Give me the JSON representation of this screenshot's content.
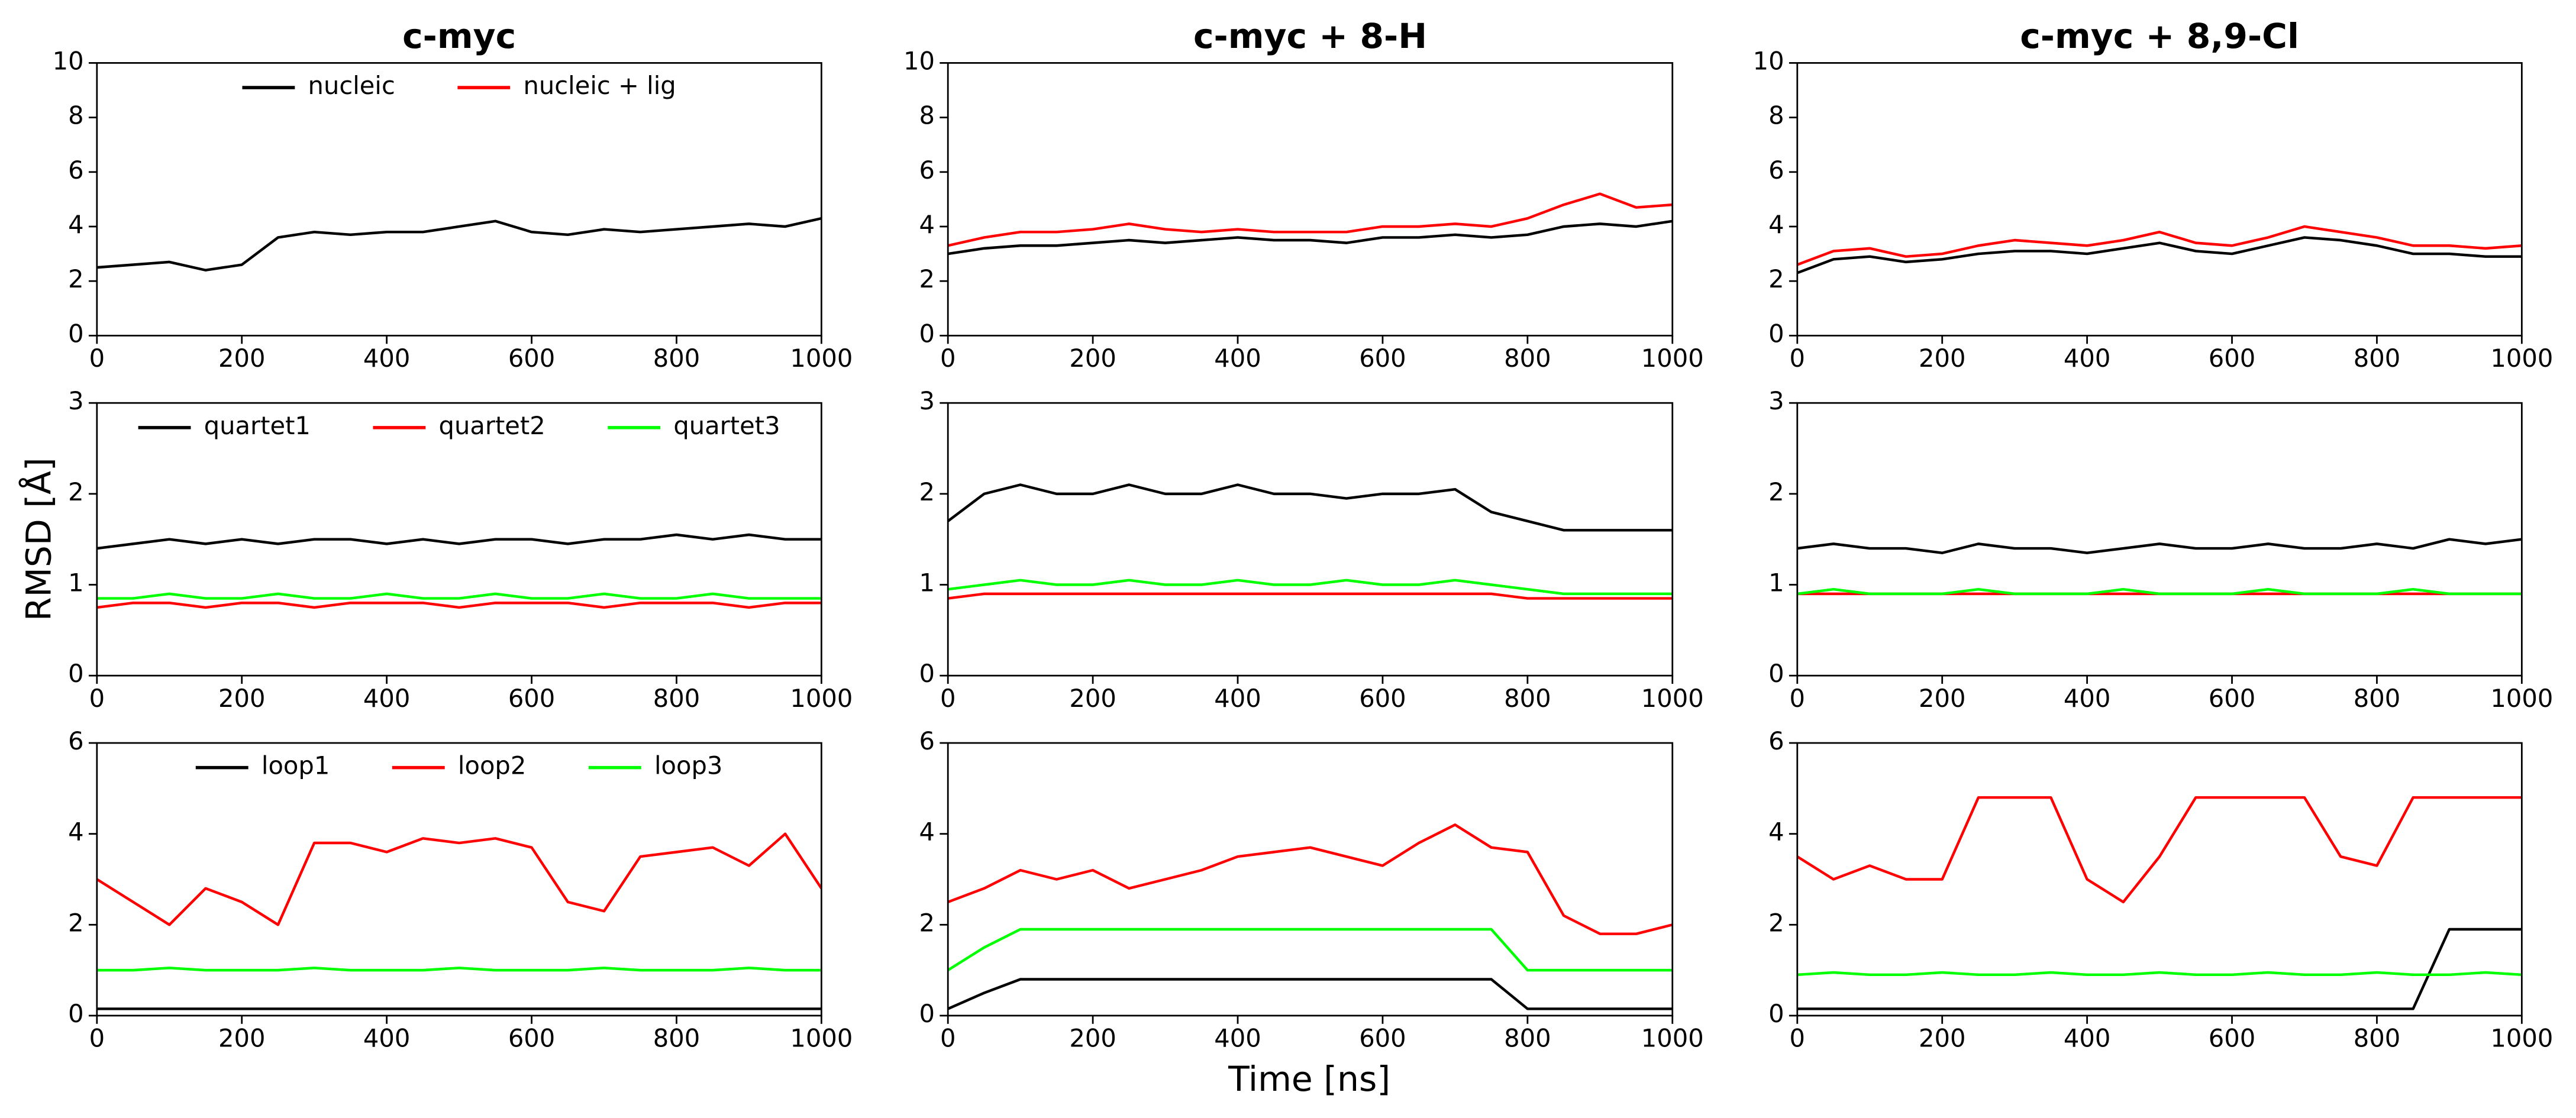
{
  "xlabel": "Time [ns]",
  "ylabel": "RMSD [Å]",
  "chart_data": [
    {
      "type": "line",
      "title": "c-myc",
      "legend": "upper center",
      "x": [
        0,
        50,
        100,
        150,
        200,
        250,
        300,
        350,
        400,
        450,
        500,
        550,
        600,
        650,
        700,
        750,
        800,
        850,
        900,
        950,
        1000
      ],
      "xlim": [
        0,
        1000
      ],
      "xticks": [
        0,
        200,
        400,
        600,
        800,
        1000
      ],
      "ylim": [
        0,
        10
      ],
      "yticks": [
        0,
        2,
        4,
        6,
        8,
        10
      ],
      "series": [
        {
          "name": "nucleic",
          "color": "#000000",
          "values": [
            2.5,
            2.6,
            2.7,
            2.4,
            2.6,
            3.6,
            3.8,
            3.7,
            3.8,
            3.8,
            4.0,
            4.2,
            3.8,
            3.7,
            3.9,
            3.8,
            3.9,
            4.0,
            4.1,
            4.0,
            4.3
          ]
        },
        {
          "name": "nucleic + lig",
          "color": "#ff0000",
          "values": [
            null,
            null,
            null,
            null,
            null,
            null,
            null,
            null,
            null,
            null,
            null,
            null,
            null,
            null,
            null,
            null,
            null,
            null,
            null,
            null,
            null
          ]
        }
      ]
    },
    {
      "type": "line",
      "title": "c-myc + 8-H",
      "x": [
        0,
        50,
        100,
        150,
        200,
        250,
        300,
        350,
        400,
        450,
        500,
        550,
        600,
        650,
        700,
        750,
        800,
        850,
        900,
        950,
        1000
      ],
      "xlim": [
        0,
        1000
      ],
      "xticks": [
        0,
        200,
        400,
        600,
        800,
        1000
      ],
      "ylim": [
        0,
        10
      ],
      "yticks": [
        0,
        2,
        4,
        6,
        8,
        10
      ],
      "series": [
        {
          "color": "#000000",
          "values": [
            3.0,
            3.2,
            3.3,
            3.3,
            3.4,
            3.5,
            3.4,
            3.5,
            3.6,
            3.5,
            3.5,
            3.4,
            3.6,
            3.6,
            3.7,
            3.6,
            3.7,
            4.0,
            4.1,
            4.0,
            4.2
          ]
        },
        {
          "color": "#ff0000",
          "values": [
            3.3,
            3.6,
            3.8,
            3.8,
            3.9,
            4.1,
            3.9,
            3.8,
            3.9,
            3.8,
            3.8,
            3.8,
            4.0,
            4.0,
            4.1,
            4.0,
            4.3,
            4.8,
            5.2,
            4.7,
            4.8
          ]
        }
      ]
    },
    {
      "type": "line",
      "title": "c-myc + 8,9-Cl",
      "x": [
        0,
        50,
        100,
        150,
        200,
        250,
        300,
        350,
        400,
        450,
        500,
        550,
        600,
        650,
        700,
        750,
        800,
        850,
        900,
        950,
        1000
      ],
      "xlim": [
        0,
        1000
      ],
      "xticks": [
        0,
        200,
        400,
        600,
        800,
        1000
      ],
      "ylim": [
        0,
        10
      ],
      "yticks": [
        0,
        2,
        4,
        6,
        8,
        10
      ],
      "series": [
        {
          "color": "#000000",
          "values": [
            2.3,
            2.8,
            2.9,
            2.7,
            2.8,
            3.0,
            3.1,
            3.1,
            3.0,
            3.2,
            3.4,
            3.1,
            3.0,
            3.3,
            3.6,
            3.5,
            3.3,
            3.0,
            3.0,
            2.9,
            2.9
          ]
        },
        {
          "color": "#ff0000",
          "values": [
            2.6,
            3.1,
            3.2,
            2.9,
            3.0,
            3.3,
            3.5,
            3.4,
            3.3,
            3.5,
            3.8,
            3.4,
            3.3,
            3.6,
            4.0,
            3.8,
            3.6,
            3.3,
            3.3,
            3.2,
            3.3
          ]
        }
      ]
    },
    {
      "type": "line",
      "legend": "upper center",
      "x": [
        0,
        50,
        100,
        150,
        200,
        250,
        300,
        350,
        400,
        450,
        500,
        550,
        600,
        650,
        700,
        750,
        800,
        850,
        900,
        950,
        1000
      ],
      "xlim": [
        0,
        1000
      ],
      "xticks": [
        0,
        200,
        400,
        600,
        800,
        1000
      ],
      "ylim": [
        0,
        3
      ],
      "yticks": [
        0,
        1,
        2,
        3
      ],
      "series": [
        {
          "name": "quartet1",
          "color": "#000000",
          "values": [
            1.4,
            1.45,
            1.5,
            1.45,
            1.5,
            1.45,
            1.5,
            1.5,
            1.45,
            1.5,
            1.45,
            1.5,
            1.5,
            1.45,
            1.5,
            1.5,
            1.55,
            1.5,
            1.55,
            1.5,
            1.5
          ]
        },
        {
          "name": "quartet2",
          "color": "#ff0000",
          "values": [
            0.75,
            0.8,
            0.8,
            0.75,
            0.8,
            0.8,
            0.75,
            0.8,
            0.8,
            0.8,
            0.75,
            0.8,
            0.8,
            0.8,
            0.75,
            0.8,
            0.8,
            0.8,
            0.75,
            0.8,
            0.8
          ]
        },
        {
          "name": "quartet3",
          "color": "#00ff00",
          "values": [
            0.85,
            0.85,
            0.9,
            0.85,
            0.85,
            0.9,
            0.85,
            0.85,
            0.9,
            0.85,
            0.85,
            0.9,
            0.85,
            0.85,
            0.9,
            0.85,
            0.85,
            0.9,
            0.85,
            0.85,
            0.85
          ]
        }
      ]
    },
    {
      "type": "line",
      "x": [
        0,
        50,
        100,
        150,
        200,
        250,
        300,
        350,
        400,
        450,
        500,
        550,
        600,
        650,
        700,
        750,
        800,
        850,
        900,
        950,
        1000
      ],
      "xlim": [
        0,
        1000
      ],
      "xticks": [
        0,
        200,
        400,
        600,
        800,
        1000
      ],
      "ylim": [
        0,
        3
      ],
      "yticks": [
        0,
        1,
        2,
        3
      ],
      "series": [
        {
          "color": "#000000",
          "values": [
            1.7,
            2.0,
            2.1,
            2.0,
            2.0,
            2.1,
            2.0,
            2.0,
            2.1,
            2.0,
            2.0,
            1.95,
            2.0,
            2.0,
            2.05,
            1.8,
            1.7,
            1.6,
            1.6,
            1.6,
            1.6
          ]
        },
        {
          "color": "#ff0000",
          "values": [
            0.85,
            0.9,
            0.9,
            0.9,
            0.9,
            0.9,
            0.9,
            0.9,
            0.9,
            0.9,
            0.9,
            0.9,
            0.9,
            0.9,
            0.9,
            0.9,
            0.85,
            0.85,
            0.85,
            0.85,
            0.85
          ]
        },
        {
          "color": "#00ff00",
          "values": [
            0.95,
            1.0,
            1.05,
            1.0,
            1.0,
            1.05,
            1.0,
            1.0,
            1.05,
            1.0,
            1.0,
            1.05,
            1.0,
            1.0,
            1.05,
            1.0,
            0.95,
            0.9,
            0.9,
            0.9,
            0.9
          ]
        }
      ]
    },
    {
      "type": "line",
      "x": [
        0,
        50,
        100,
        150,
        200,
        250,
        300,
        350,
        400,
        450,
        500,
        550,
        600,
        650,
        700,
        750,
        800,
        850,
        900,
        950,
        1000
      ],
      "xlim": [
        0,
        1000
      ],
      "xticks": [
        0,
        200,
        400,
        600,
        800,
        1000
      ],
      "ylim": [
        0,
        3
      ],
      "yticks": [
        0,
        1,
        2,
        3
      ],
      "series": [
        {
          "color": "#000000",
          "values": [
            1.4,
            1.45,
            1.4,
            1.4,
            1.35,
            1.45,
            1.4,
            1.4,
            1.35,
            1.4,
            1.45,
            1.4,
            1.4,
            1.45,
            1.4,
            1.4,
            1.45,
            1.4,
            1.5,
            1.45,
            1.5
          ]
        },
        {
          "color": "#ff0000",
          "values": [
            0.9,
            0.9,
            0.9,
            0.9,
            0.9,
            0.9,
            0.9,
            0.9,
            0.9,
            0.9,
            0.9,
            0.9,
            0.9,
            0.9,
            0.9,
            0.9,
            0.9,
            0.9,
            0.9,
            0.9,
            0.9
          ]
        },
        {
          "color": "#00ff00",
          "values": [
            0.9,
            0.95,
            0.9,
            0.9,
            0.9,
            0.95,
            0.9,
            0.9,
            0.9,
            0.95,
            0.9,
            0.9,
            0.9,
            0.95,
            0.9,
            0.9,
            0.9,
            0.95,
            0.9,
            0.9,
            0.9
          ]
        }
      ]
    },
    {
      "type": "line",
      "legend": "upper center",
      "x": [
        0,
        50,
        100,
        150,
        200,
        250,
        300,
        350,
        400,
        450,
        500,
        550,
        600,
        650,
        700,
        750,
        800,
        850,
        900,
        950,
        1000
      ],
      "xlim": [
        0,
        1000
      ],
      "xticks": [
        0,
        200,
        400,
        600,
        800,
        1000
      ],
      "ylim": [
        0,
        6
      ],
      "yticks": [
        0,
        2,
        4,
        6
      ],
      "series": [
        {
          "name": "loop1",
          "color": "#000000",
          "values": [
            0.15,
            0.15,
            0.15,
            0.15,
            0.15,
            0.15,
            0.15,
            0.15,
            0.15,
            0.15,
            0.15,
            0.15,
            0.15,
            0.15,
            0.15,
            0.15,
            0.15,
            0.15,
            0.15,
            0.15,
            0.15
          ]
        },
        {
          "name": "loop2",
          "color": "#ff0000",
          "values": [
            3.0,
            2.5,
            2.0,
            2.8,
            2.5,
            2.0,
            3.8,
            3.8,
            3.6,
            3.9,
            3.8,
            3.9,
            3.7,
            2.5,
            2.3,
            3.5,
            3.6,
            3.7,
            3.3,
            4.0,
            2.8
          ]
        },
        {
          "name": "loop3",
          "color": "#00ff00",
          "values": [
            1.0,
            1.0,
            1.05,
            1.0,
            1.0,
            1.0,
            1.05,
            1.0,
            1.0,
            1.0,
            1.05,
            1.0,
            1.0,
            1.0,
            1.05,
            1.0,
            1.0,
            1.0,
            1.05,
            1.0,
            1.0
          ]
        }
      ]
    },
    {
      "type": "line",
      "x": [
        0,
        50,
        100,
        150,
        200,
        250,
        300,
        350,
        400,
        450,
        500,
        550,
        600,
        650,
        700,
        750,
        800,
        850,
        900,
        950,
        1000
      ],
      "xlim": [
        0,
        1000
      ],
      "xticks": [
        0,
        200,
        400,
        600,
        800,
        1000
      ],
      "ylim": [
        0,
        6
      ],
      "yticks": [
        0,
        2,
        4,
        6
      ],
      "series": [
        {
          "color": "#000000",
          "values": [
            0.15,
            0.5,
            0.8,
            0.8,
            0.8,
            0.8,
            0.8,
            0.8,
            0.8,
            0.8,
            0.8,
            0.8,
            0.8,
            0.8,
            0.8,
            0.8,
            0.15,
            0.15,
            0.15,
            0.15,
            0.15
          ]
        },
        {
          "color": "#ff0000",
          "values": [
            2.5,
            2.8,
            3.2,
            3.0,
            3.2,
            2.8,
            3.0,
            3.2,
            3.5,
            3.6,
            3.7,
            3.5,
            3.3,
            3.8,
            4.2,
            3.7,
            3.6,
            2.2,
            1.8,
            1.8,
            2.0
          ]
        },
        {
          "color": "#00ff00",
          "values": [
            1.0,
            1.5,
            1.9,
            1.9,
            1.9,
            1.9,
            1.9,
            1.9,
            1.9,
            1.9,
            1.9,
            1.9,
            1.9,
            1.9,
            1.9,
            1.9,
            1.0,
            1.0,
            1.0,
            1.0,
            1.0
          ]
        }
      ]
    },
    {
      "type": "line",
      "x": [
        0,
        50,
        100,
        150,
        200,
        250,
        300,
        350,
        400,
        450,
        500,
        550,
        600,
        650,
        700,
        750,
        800,
        850,
        900,
        950,
        1000
      ],
      "xlim": [
        0,
        1000
      ],
      "xticks": [
        0,
        200,
        400,
        600,
        800,
        1000
      ],
      "ylim": [
        0,
        6
      ],
      "yticks": [
        0,
        2,
        4,
        6
      ],
      "series": [
        {
          "color": "#000000",
          "values": [
            0.15,
            0.15,
            0.15,
            0.15,
            0.15,
            0.15,
            0.15,
            0.15,
            0.15,
            0.15,
            0.15,
            0.15,
            0.15,
            0.15,
            0.15,
            0.15,
            0.15,
            0.15,
            1.9,
            1.9,
            1.9
          ]
        },
        {
          "color": "#ff0000",
          "values": [
            3.5,
            3.0,
            3.3,
            3.0,
            3.0,
            4.8,
            4.8,
            4.8,
            3.0,
            2.5,
            3.5,
            4.8,
            4.8,
            4.8,
            4.8,
            3.5,
            3.3,
            4.8,
            4.8,
            4.8,
            4.8
          ]
        },
        {
          "color": "#00ff00",
          "values": [
            0.9,
            0.95,
            0.9,
            0.9,
            0.95,
            0.9,
            0.9,
            0.95,
            0.9,
            0.9,
            0.95,
            0.9,
            0.9,
            0.95,
            0.9,
            0.9,
            0.95,
            0.9,
            0.9,
            0.95,
            0.9
          ]
        }
      ]
    }
  ]
}
